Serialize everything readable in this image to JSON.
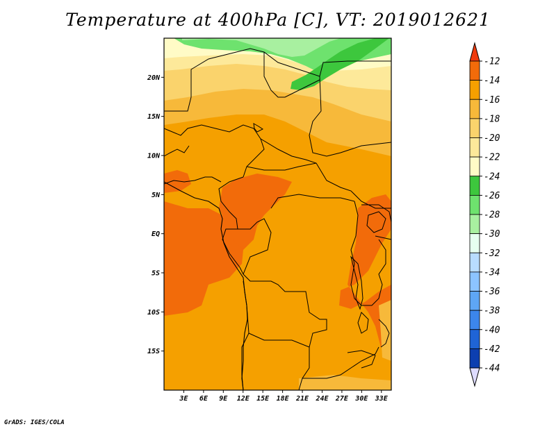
{
  "title": "Temperature at 400hPa [C], VT: 2019012621",
  "credit": "GrADS: IGES/COLA",
  "map": {
    "lon_range": [
      0,
      34.5
    ],
    "lat_range": [
      -20,
      25
    ],
    "lat_ticks": [
      {
        "value": 20,
        "label": "20N"
      },
      {
        "value": 15,
        "label": "15N"
      },
      {
        "value": 10,
        "label": "10N"
      },
      {
        "value": 5,
        "label": "5N"
      },
      {
        "value": 0,
        "label": "EQ"
      },
      {
        "value": -5,
        "label": "5S"
      },
      {
        "value": -10,
        "label": "10S"
      },
      {
        "value": -15,
        "label": "15S"
      }
    ],
    "lon_ticks": [
      {
        "value": 3,
        "label": "3E"
      },
      {
        "value": 6,
        "label": "6E"
      },
      {
        "value": 9,
        "label": "9E"
      },
      {
        "value": 12,
        "label": "12E"
      },
      {
        "value": 15,
        "label": "15E"
      },
      {
        "value": 18,
        "label": "18E"
      },
      {
        "value": 21,
        "label": "21E"
      },
      {
        "value": 24,
        "label": "24E"
      },
      {
        "value": 27,
        "label": "27E"
      },
      {
        "value": 30,
        "label": "30E"
      },
      {
        "value": 33,
        "label": "33E"
      }
    ]
  },
  "colorbar": {
    "labels": [
      "-12",
      "-14",
      "-16",
      "-18",
      "-20",
      "-22",
      "-24",
      "-26",
      "-28",
      "-30",
      "-32",
      "-34",
      "-36",
      "-38",
      "-40",
      "-42",
      "-44"
    ],
    "colors": [
      "#ef3b0e",
      "#f26b0a",
      "#f5a000",
      "#f7b93a",
      "#fad36c",
      "#fde99a",
      "#fffbc6",
      "#3dc73d",
      "#6ee26e",
      "#a8f0a0",
      "#e6fff0",
      "#b8dcff",
      "#8cc4ff",
      "#5ea6f5",
      "#3c86eb",
      "#1f64d6",
      "#0d3fb0",
      "#0a1c78",
      "#dedcff"
    ]
  }
}
